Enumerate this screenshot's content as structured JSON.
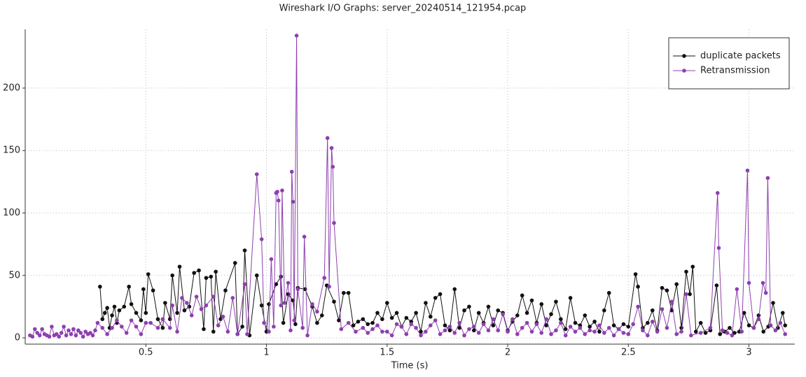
{
  "chart_data": {
    "type": "line",
    "title": "Wireshark I/O Graphs: server_20240514_121954.pcap",
    "x_label": "Time (s)",
    "xlim": [
      0,
      3.19
    ],
    "ylim": [
      -5,
      247
    ],
    "xticks": [
      0.5,
      1,
      1.5,
      2,
      2.5,
      3
    ],
    "yticks": [
      0,
      50,
      100,
      150,
      200
    ],
    "grid": true,
    "legend": "top-right",
    "series": [
      {
        "name": "duplicate packets",
        "color": "#111111",
        "x": [
          0.31,
          0.32,
          0.33,
          0.34,
          0.35,
          0.36,
          0.37,
          0.38,
          0.39,
          0.41,
          0.43,
          0.44,
          0.46,
          0.48,
          0.49,
          0.5,
          0.51,
          0.53,
          0.55,
          0.57,
          0.58,
          0.6,
          0.61,
          0.63,
          0.64,
          0.66,
          0.68,
          0.7,
          0.72,
          0.74,
          0.75,
          0.77,
          0.78,
          0.79,
          0.81,
          0.83,
          0.87,
          0.88,
          0.9,
          0.91,
          0.93,
          0.96,
          0.98,
          1.0,
          1.01,
          1.04,
          1.06,
          1.07,
          1.09,
          1.11,
          1.12,
          1.13,
          1.16,
          1.19,
          1.21,
          1.23,
          1.25,
          1.28,
          1.3,
          1.32,
          1.34,
          1.36,
          1.38,
          1.4,
          1.42,
          1.44,
          1.46,
          1.48,
          1.5,
          1.52,
          1.54,
          1.56,
          1.58,
          1.6,
          1.62,
          1.64,
          1.66,
          1.68,
          1.7,
          1.72,
          1.74,
          1.76,
          1.78,
          1.8,
          1.82,
          1.84,
          1.86,
          1.88,
          1.9,
          1.92,
          1.94,
          1.96,
          1.98,
          2.0,
          2.02,
          2.04,
          2.06,
          2.08,
          2.1,
          2.12,
          2.14,
          2.16,
          2.18,
          2.2,
          2.22,
          2.24,
          2.26,
          2.28,
          2.3,
          2.32,
          2.34,
          2.36,
          2.38,
          2.4,
          2.42,
          2.44,
          2.46,
          2.48,
          2.5,
          2.53,
          2.54,
          2.56,
          2.58,
          2.6,
          2.62,
          2.64,
          2.66,
          2.68,
          2.7,
          2.72,
          2.74,
          2.755,
          2.767,
          2.78,
          2.8,
          2.82,
          2.84,
          2.866,
          2.88,
          2.9,
          2.92,
          2.94,
          2.96,
          2.98,
          3.0,
          3.02,
          3.04,
          3.06,
          3.08,
          3.1,
          3.12,
          3.14,
          3.15
        ],
        "values": [
          41,
          15,
          20,
          24,
          8,
          18,
          25,
          12,
          22,
          25,
          41,
          27,
          20,
          14,
          39,
          20,
          51,
          38,
          15,
          8,
          28,
          15,
          50,
          20,
          57,
          22,
          25,
          52,
          54,
          7,
          48,
          49,
          5,
          53,
          15,
          38,
          60,
          3,
          9,
          70,
          2,
          50,
          26,
          5,
          27,
          43,
          49,
          12,
          35,
          30,
          11,
          40,
          39,
          25,
          12,
          18,
          42,
          29,
          14,
          36,
          36,
          10,
          13,
          15,
          11,
          12,
          20,
          15,
          28,
          16,
          20,
          9,
          16,
          13,
          20,
          5,
          28,
          17,
          32,
          35,
          10,
          6,
          39,
          8,
          22,
          25,
          6,
          20,
          12,
          25,
          10,
          22,
          20,
          6,
          13,
          18,
          34,
          20,
          30,
          12,
          27,
          10,
          19,
          29,
          15,
          7,
          32,
          12,
          10,
          18,
          9,
          13,
          5,
          22,
          36,
          10,
          7,
          11,
          9,
          51,
          41,
          8,
          12,
          22,
          6,
          40,
          38,
          22,
          43,
          8,
          53,
          35,
          57,
          5,
          12,
          4,
          6,
          42,
          3,
          5,
          8,
          4,
          5,
          20,
          10,
          8,
          18,
          5,
          9,
          28,
          8,
          20,
          10
        ]
      },
      {
        "name": "Retransmission",
        "color": "#8e3fb0",
        "x": [
          0.02,
          0.03,
          0.04,
          0.05,
          0.06,
          0.07,
          0.08,
          0.09,
          0.1,
          0.11,
          0.12,
          0.13,
          0.14,
          0.15,
          0.16,
          0.17,
          0.18,
          0.19,
          0.2,
          0.21,
          0.22,
          0.23,
          0.24,
          0.25,
          0.26,
          0.27,
          0.28,
          0.29,
          0.3,
          0.32,
          0.34,
          0.36,
          0.38,
          0.4,
          0.42,
          0.44,
          0.46,
          0.48,
          0.5,
          0.52,
          0.55,
          0.57,
          0.6,
          0.61,
          0.63,
          0.65,
          0.67,
          0.69,
          0.71,
          0.73,
          0.75,
          0.78,
          0.8,
          0.82,
          0.84,
          0.86,
          0.88,
          0.91,
          0.92,
          0.96,
          0.98,
          0.99,
          1.01,
          1.02,
          1.03,
          1.04,
          1.045,
          1.05,
          1.06,
          1.065,
          1.075,
          1.09,
          1.1,
          1.105,
          1.11,
          1.115,
          1.125,
          1.13,
          1.15,
          1.157,
          1.17,
          1.19,
          1.21,
          1.24,
          1.253,
          1.26,
          1.27,
          1.275,
          1.28,
          1.31,
          1.34,
          1.37,
          1.4,
          1.42,
          1.44,
          1.46,
          1.48,
          1.5,
          1.52,
          1.54,
          1.56,
          1.58,
          1.6,
          1.62,
          1.64,
          1.66,
          1.68,
          1.7,
          1.72,
          1.74,
          1.76,
          1.78,
          1.8,
          1.82,
          1.84,
          1.86,
          1.88,
          1.9,
          1.92,
          1.94,
          1.96,
          1.98,
          2.0,
          2.02,
          2.04,
          2.06,
          2.08,
          2.1,
          2.12,
          2.14,
          2.16,
          2.18,
          2.2,
          2.22,
          2.24,
          2.26,
          2.28,
          2.3,
          2.32,
          2.34,
          2.36,
          2.38,
          2.4,
          2.42,
          2.44,
          2.46,
          2.48,
          2.5,
          2.52,
          2.54,
          2.56,
          2.58,
          2.6,
          2.62,
          2.64,
          2.66,
          2.68,
          2.7,
          2.72,
          2.74,
          2.76,
          2.8,
          2.84,
          2.87,
          2.875,
          2.89,
          2.91,
          2.93,
          2.95,
          2.97,
          2.994,
          3.0,
          3.02,
          3.04,
          3.058,
          3.07,
          3.078,
          3.09,
          3.11,
          3.13,
          3.15
        ],
        "values": [
          2,
          1,
          7,
          4,
          2,
          7,
          3,
          2,
          1,
          9,
          2,
          3,
          1,
          4,
          9,
          2,
          6,
          3,
          7,
          2,
          6,
          4,
          1,
          5,
          3,
          4,
          2,
          6,
          12,
          8,
          3,
          8,
          14,
          9,
          4,
          14,
          9,
          3,
          12,
          12,
          8,
          15,
          8,
          26,
          5,
          32,
          28,
          18,
          33,
          23,
          26,
          33,
          10,
          17,
          5,
          32,
          3,
          43,
          3,
          131,
          79,
          12,
          5,
          63,
          9,
          116,
          117,
          110,
          26,
          118,
          28,
          44,
          6,
          133,
          109,
          14,
          242,
          39,
          8,
          81,
          2,
          27,
          21,
          48,
          160,
          41,
          152,
          137,
          92,
          7,
          12,
          5,
          8,
          4,
          7,
          10,
          5,
          5,
          2,
          11,
          9,
          3,
          11,
          8,
          2,
          5,
          10,
          14,
          3,
          6,
          9,
          4,
          12,
          2,
          7,
          9,
          4,
          11,
          6,
          15,
          6,
          19,
          5,
          15,
          3,
          8,
          12,
          5,
          11,
          4,
          15,
          3,
          6,
          12,
          2,
          9,
          5,
          8,
          3,
          6,
          5,
          10,
          4,
          8,
          2,
          7,
          4,
          3,
          11,
          25,
          6,
          2,
          13,
          5,
          23,
          8,
          29,
          3,
          5,
          35,
          2,
          4,
          8,
          116,
          72,
          6,
          4,
          2,
          39,
          5,
          134,
          44,
          8,
          15,
          44,
          36,
          128,
          10,
          6,
          12,
          3
        ]
      }
    ]
  }
}
